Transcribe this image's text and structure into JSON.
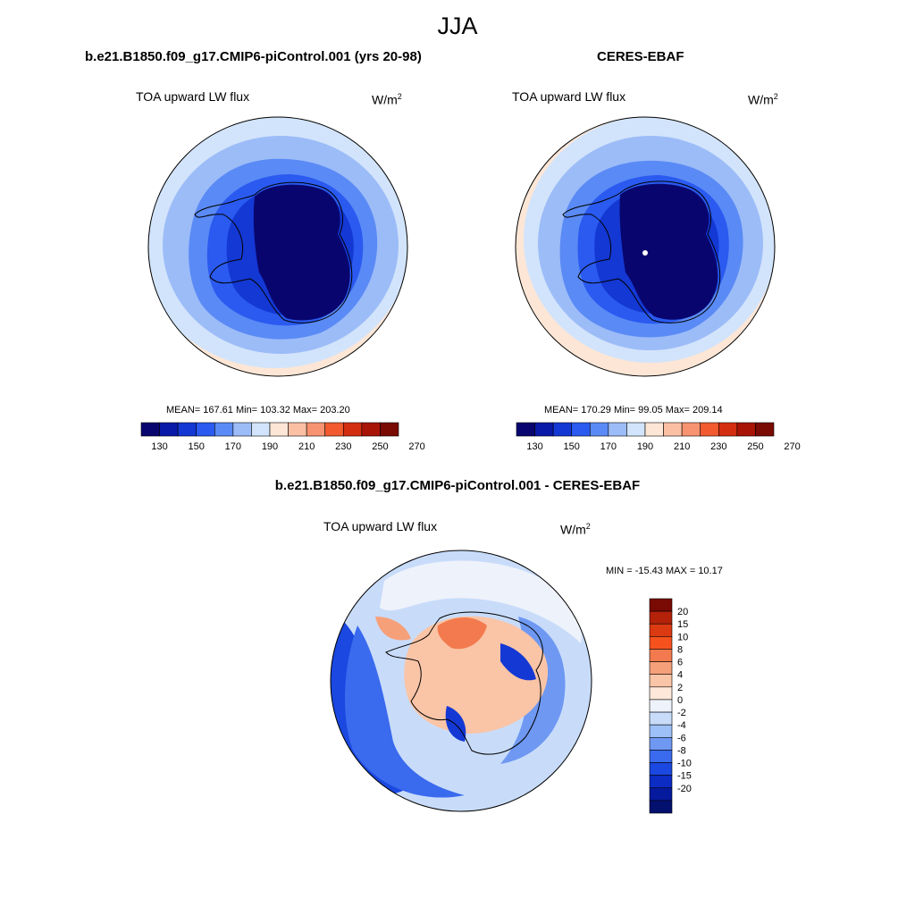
{
  "main_title": "JJA",
  "panels": {
    "model": {
      "title": "b.e21.B1850.f09_g17.CMIP6-piControl.001 (yrs 20-98)",
      "left_label": "TOA upward LW flux",
      "units": "W/m",
      "units_sup": "2",
      "stats": "MEAN= 167.61  Min= 103.32  Max= 203.20"
    },
    "obs": {
      "title": "CERES-EBAF",
      "left_label": "TOA upward LW flux",
      "units": "W/m",
      "units_sup": "2",
      "stats": "MEAN= 170.29  Min=  99.05  Max= 209.14"
    },
    "diff": {
      "title": "b.e21.B1850.f09_g17.CMIP6-piControl.001 - CERES-EBAF",
      "left_label": "TOA upward LW flux",
      "units": "W/m",
      "units_sup": "2",
      "stats": "MIN = -15.43 MAX =  10.17"
    }
  },
  "colorbars": {
    "abs": {
      "colors": [
        "#08066e",
        "#0a1aa8",
        "#1438d4",
        "#2a5af0",
        "#5a8af5",
        "#9cbcf8",
        "#d2e4fb",
        "#fde6d6",
        "#fbc0a4",
        "#f79370",
        "#f25a30",
        "#d42e10",
        "#a81406",
        "#7a0a04"
      ],
      "tick_labels": [
        "130",
        "150",
        "170",
        "190",
        "210",
        "230",
        "250",
        "270"
      ]
    },
    "diff": {
      "colors": [
        "#7a0a04",
        "#b4220a",
        "#dc3a12",
        "#f5521e",
        "#f27a4e",
        "#f6a07a",
        "#fac4a6",
        "#fde8da",
        "#eef2fb",
        "#c8dcfa",
        "#9ec0f8",
        "#6e98f2",
        "#3a6aee",
        "#1a48e0",
        "#0c2cc4",
        "#061a9e",
        "#04106e"
      ],
      "tick_labels": [
        "20",
        "15",
        "10",
        "8",
        "6",
        "4",
        "2",
        "0",
        "-2",
        "-4",
        "-6",
        "-8",
        "-10",
        "-15",
        "-20"
      ]
    }
  }
}
